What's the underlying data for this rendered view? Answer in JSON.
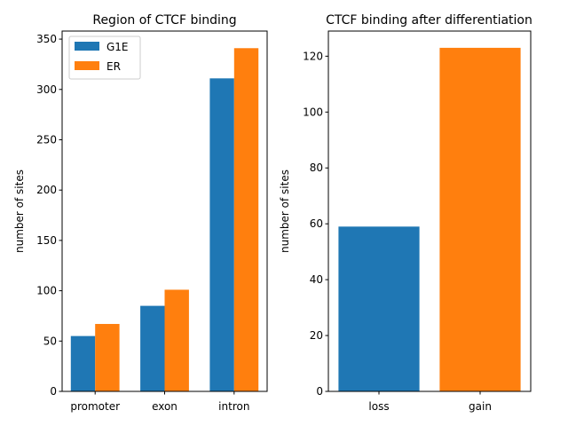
{
  "chart_data": [
    {
      "type": "bar",
      "title": "Region of CTCF binding",
      "xlabel": "",
      "ylabel": "number of sites",
      "categories": [
        "promoter",
        "exon",
        "intron"
      ],
      "series": [
        {
          "name": "G1E",
          "color": "#1f77b4",
          "values": [
            55,
            85,
            311
          ]
        },
        {
          "name": "ER",
          "color": "#ff7f0e",
          "values": [
            67,
            101,
            341
          ]
        }
      ],
      "ylim": [
        0,
        358
      ],
      "yticks": [
        0,
        50,
        100,
        150,
        200,
        250,
        300,
        350
      ],
      "legend": "top-left",
      "grid": false
    },
    {
      "type": "bar",
      "title": "CTCF binding after differentiation",
      "xlabel": "",
      "ylabel": "number of sites",
      "categories": [
        "loss",
        "gain"
      ],
      "values": [
        59,
        123
      ],
      "colors": [
        "#1f77b4",
        "#ff7f0e"
      ],
      "ylim": [
        0,
        129
      ],
      "yticks": [
        0,
        20,
        40,
        60,
        80,
        100,
        120
      ],
      "grid": false
    }
  ]
}
